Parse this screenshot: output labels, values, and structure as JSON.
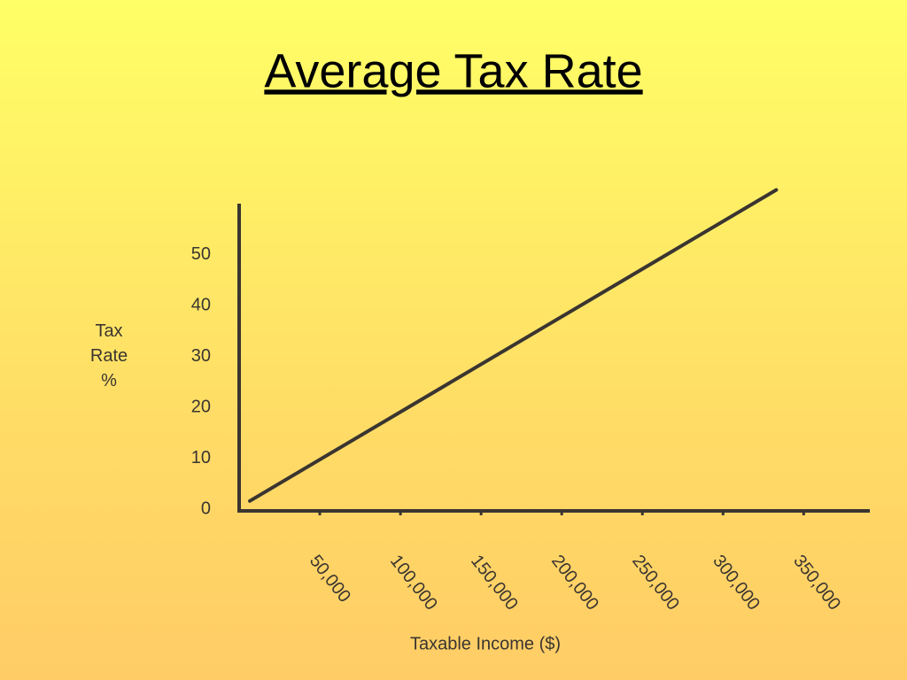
{
  "chart_data": {
    "type": "line",
    "title": "Average Tax Rate",
    "xlabel": "Taxable Income ($)",
    "ylabel": "Tax Rate %",
    "series": [
      {
        "color": "#3a3530",
        "x": [
          6600,
          333000
        ],
        "values": [
          1.6,
          62.7
        ]
      }
    ],
    "xlim": [
      0,
      391000
    ],
    "ylim": [
      0,
      60
    ],
    "xticks": [
      {
        "value": 50000,
        "label": "50,000"
      },
      {
        "value": 100000,
        "label": "100,000"
      },
      {
        "value": 150000,
        "label": "150,000"
      },
      {
        "value": 200000,
        "label": "200,000"
      },
      {
        "value": 250000,
        "label": "250,000"
      },
      {
        "value": 300000,
        "label": "300,000"
      },
      {
        "value": 350000,
        "label": "350,000"
      }
    ],
    "yticks": [
      0,
      10,
      20,
      30,
      40,
      50
    ],
    "grid": false
  }
}
